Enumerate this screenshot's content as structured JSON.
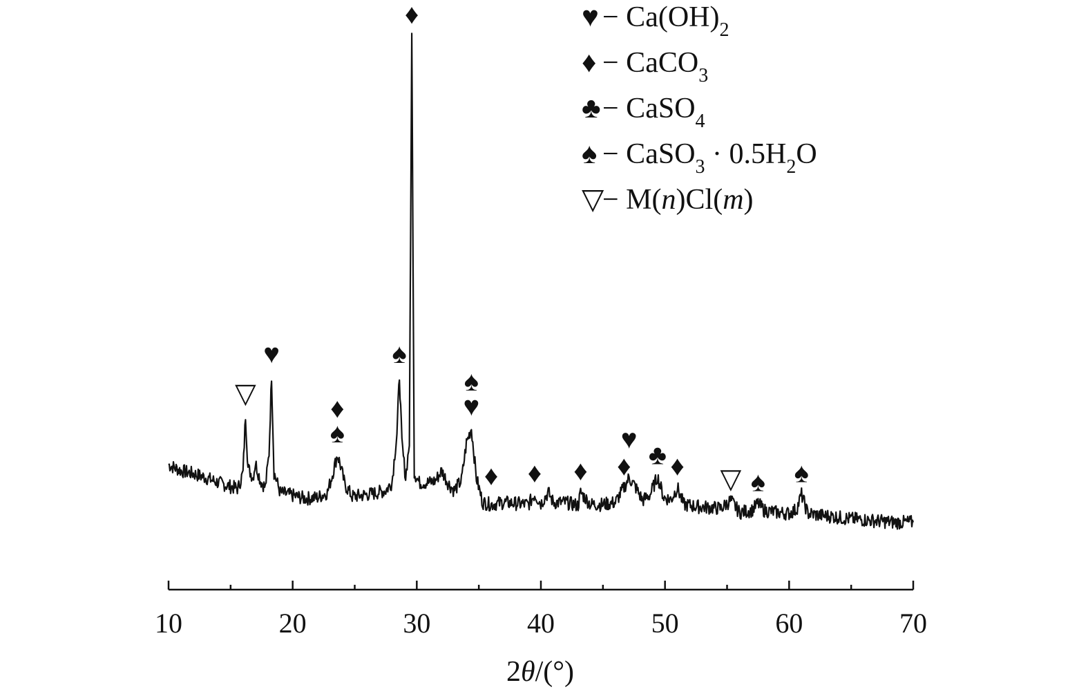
{
  "chart_data": {
    "type": "line",
    "title": "",
    "xlabel_parts": [
      "2",
      "θ",
      "/(°)"
    ],
    "ylabel": "",
    "xlim": [
      10,
      70
    ],
    "xticks": [
      10,
      20,
      30,
      40,
      50,
      60,
      70
    ],
    "xticks_minor": [
      15,
      25,
      35,
      45,
      55,
      65
    ],
    "y_ticks_shown": false,
    "grid": false,
    "legend_position": "top-right",
    "line_color": "#111111",
    "legend": [
      {
        "symbol": "♥",
        "symbol_name": "heart-icon",
        "text": "− Ca(OH)",
        "sub": "2",
        "after": ""
      },
      {
        "symbol": "♦",
        "symbol_name": "diamond-icon",
        "text": "− CaCO",
        "sub": "3",
        "after": ""
      },
      {
        "symbol": "♣",
        "symbol_name": "club-icon",
        "text": "− CaSO",
        "sub": "4",
        "after": ""
      },
      {
        "symbol": "♠",
        "symbol_name": "spade-icon",
        "text": "− CaSO",
        "sub": "3",
        "after": " · 0.5H",
        "sub2": "2",
        "after2": "O"
      },
      {
        "symbol": "▽",
        "symbol_name": "triangle-down-icon",
        "text": "− M(",
        "italic1": "n",
        "mid": ")Cl(",
        "italic2": "m",
        "after": ")"
      }
    ],
    "series": [
      {
        "x": [
          10,
          11,
          12,
          13,
          14,
          15,
          15.6,
          16.0,
          16.2,
          16.4,
          16.8,
          17.0,
          17.4,
          17.8,
          18.1,
          18.3,
          18.5,
          19,
          20,
          21,
          22,
          22.8,
          23.2,
          23.6,
          23.8,
          24.2,
          24.8,
          25.5,
          26.5,
          27.5,
          28.0,
          28.4,
          28.6,
          28.8,
          29.1,
          29.4,
          29.6,
          29.8,
          30.2,
          31.0,
          31.5,
          32.0,
          32.5,
          33.0,
          33.6,
          34.0,
          34.4,
          34.8,
          35.3,
          36.0,
          37.0,
          38.0,
          39.0,
          39.5,
          40.0,
          40.6,
          41.0,
          42.0,
          43.0,
          43.2,
          44.0,
          45.0,
          46.0,
          46.7,
          47.1,
          47.6,
          48.2,
          48.8,
          49.4,
          49.9,
          50.5,
          51.0,
          51.5,
          52.5,
          53.5,
          54.5,
          55.3,
          56.0,
          57.0,
          57.5,
          58.0,
          59.0,
          60.0,
          60.6,
          61.0,
          61.5,
          62.5,
          63.5,
          64.5,
          65.5,
          66.5,
          67.5,
          68.5,
          69.5,
          70.0
        ],
        "y": [
          6.8,
          6.2,
          5.9,
          5.5,
          5.0,
          4.6,
          4.4,
          6.0,
          11.8,
          6.5,
          5.5,
          7.0,
          5.2,
          4.5,
          8.0,
          15.8,
          6.0,
          4.0,
          3.7,
          3.4,
          3.5,
          4.0,
          5.8,
          7.8,
          7.0,
          4.8,
          3.6,
          3.7,
          3.9,
          4.2,
          5.0,
          10.0,
          15.8,
          9.0,
          5.5,
          9.0,
          50.0,
          6.0,
          5.0,
          5.0,
          5.2,
          6.2,
          5.0,
          4.2,
          5.2,
          9.0,
          10.5,
          5.5,
          3.0,
          2.8,
          3.0,
          2.9,
          2.8,
          3.8,
          2.9,
          4.0,
          3.0,
          3.0,
          2.7,
          4.0,
          2.8,
          2.8,
          3.0,
          4.5,
          5.5,
          4.6,
          3.2,
          3.8,
          5.6,
          3.5,
          3.3,
          4.5,
          2.8,
          2.6,
          2.5,
          2.4,
          3.2,
          2.0,
          2.2,
          2.9,
          2.2,
          2.0,
          1.9,
          2.3,
          3.8,
          1.9,
          1.7,
          1.6,
          1.4,
          1.3,
          1.2,
          1.1,
          1.0,
          1.0,
          1.0
        ]
      }
    ],
    "markers": [
      {
        "symbol": "▽",
        "x": 16.2,
        "y": 11.8,
        "name": "triangle-down-icon"
      },
      {
        "symbol": "♥",
        "x": 18.3,
        "y": 15.8,
        "name": "heart-icon"
      },
      {
        "symbol": "♠",
        "x": 23.6,
        "y": 7.8,
        "name": "spade-icon"
      },
      {
        "symbol": "♦",
        "x": 23.6,
        "y": 7.8,
        "name": "diamond-icon",
        "stack": 1
      },
      {
        "symbol": "♠",
        "x": 28.6,
        "y": 15.8,
        "name": "spade-icon"
      },
      {
        "symbol": "♦",
        "x": 29.6,
        "y": 50.0,
        "name": "diamond-icon"
      },
      {
        "symbol": "♥",
        "x": 34.4,
        "y": 10.5,
        "name": "heart-icon"
      },
      {
        "symbol": "♠",
        "x": 34.4,
        "y": 10.5,
        "name": "spade-icon",
        "stack": 1
      },
      {
        "symbol": "♦",
        "x": 36.0,
        "y": 3.5,
        "name": "diamond-icon"
      },
      {
        "symbol": "♦",
        "x": 39.5,
        "y": 3.8,
        "name": "diamond-icon"
      },
      {
        "symbol": "♦",
        "x": 43.2,
        "y": 4.0,
        "name": "diamond-icon"
      },
      {
        "symbol": "♦",
        "x": 46.7,
        "y": 4.5,
        "name": "diamond-icon"
      },
      {
        "symbol": "♥",
        "x": 47.1,
        "y": 7.2,
        "name": "heart-icon"
      },
      {
        "symbol": "♣",
        "x": 49.4,
        "y": 5.6,
        "name": "club-icon"
      },
      {
        "symbol": "♦",
        "x": 51.0,
        "y": 4.5,
        "name": "diamond-icon"
      },
      {
        "symbol": "▽",
        "x": 55.3,
        "y": 3.2,
        "name": "triangle-down-icon"
      },
      {
        "symbol": "♠",
        "x": 57.5,
        "y": 2.9,
        "name": "spade-icon"
      },
      {
        "symbol": "♠",
        "x": 61.0,
        "y": 3.8,
        "name": "spade-icon"
      }
    ]
  }
}
